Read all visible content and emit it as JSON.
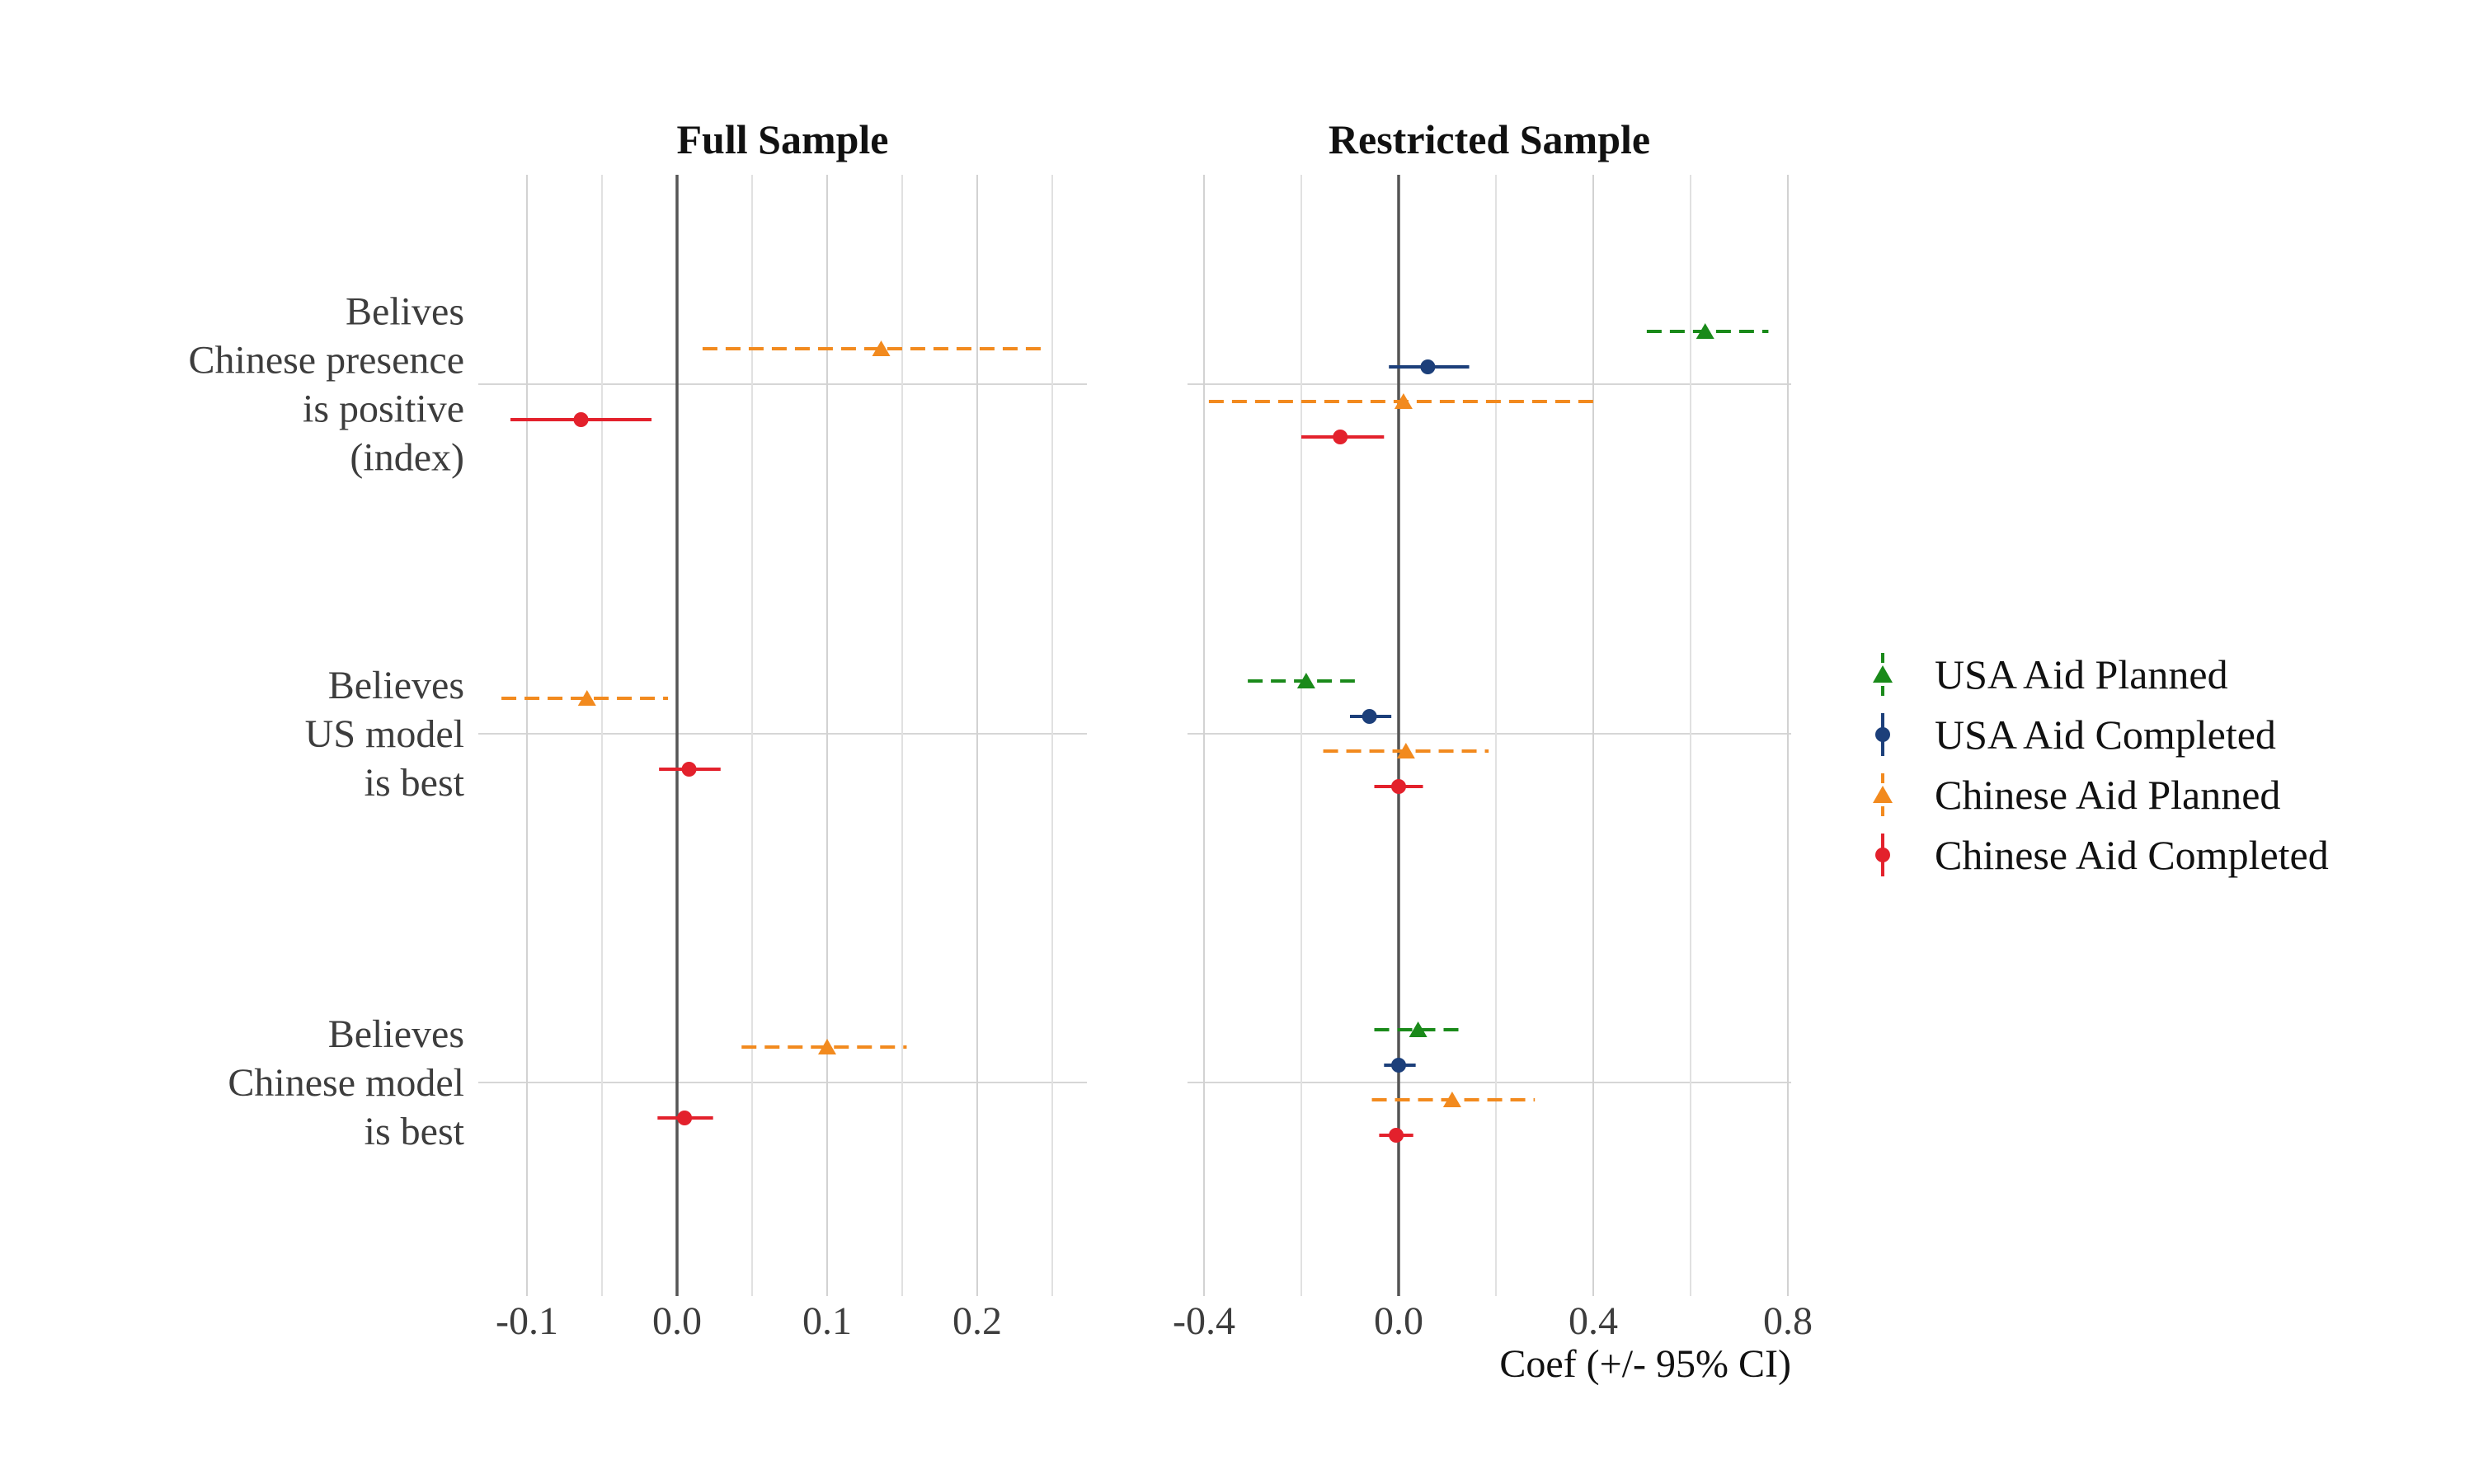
{
  "chart_data": {
    "type": "coefficient-plot",
    "x_axis_title": "Coef (+/- 95% CI)",
    "categories": [
      {
        "id": "positive",
        "label_lines": [
          "Belives",
          "Chinese presence",
          "is positive",
          "(index)"
        ]
      },
      {
        "id": "us_model",
        "label_lines": [
          "Believes",
          "US model",
          "is best"
        ]
      },
      {
        "id": "cn_model",
        "label_lines": [
          "Believes",
          "Chinese model",
          "is best"
        ]
      }
    ],
    "series_styles": [
      {
        "name": "USA Aid Planned",
        "color": "#1a8a1a",
        "marker": "triangle",
        "dash": true
      },
      {
        "name": "USA Aid Completed",
        "color": "#1c3f7a",
        "marker": "circle",
        "dash": false
      },
      {
        "name": "Chinese Aid Planned",
        "color": "#f28a1e",
        "marker": "triangle",
        "dash": true
      },
      {
        "name": "Chinese Aid Completed",
        "color": "#e3212c",
        "marker": "circle",
        "dash": false
      }
    ],
    "legend_placement": "right",
    "grid": true,
    "panels": [
      {
        "title": "Full Sample",
        "xlim": [
          -0.12,
          0.28
        ],
        "ticks": [
          -0.1,
          0.0,
          0.1,
          0.2
        ],
        "tick_labels": [
          "-0.1",
          "0.0",
          "0.1",
          "0.2"
        ],
        "minor_ticks": [
          -0.05,
          0.05,
          0.15,
          0.25
        ],
        "series": [
          {
            "name": "Chinese Aid Planned",
            "points": [
              {
                "category": "positive",
                "estimate": 0.136,
                "low": 0.017,
                "high": 0.245
              },
              {
                "category": "us_model",
                "estimate": -0.06,
                "low": -0.117,
                "high": -0.006
              },
              {
                "category": "cn_model",
                "estimate": 0.1,
                "low": 0.043,
                "high": 0.153
              }
            ]
          },
          {
            "name": "Chinese Aid Completed",
            "points": [
              {
                "category": "positive",
                "estimate": -0.064,
                "low": -0.111,
                "high": -0.017
              },
              {
                "category": "us_model",
                "estimate": 0.008,
                "low": -0.012,
                "high": 0.029
              },
              {
                "category": "cn_model",
                "estimate": 0.005,
                "low": -0.013,
                "high": 0.024
              }
            ]
          }
        ]
      },
      {
        "title": "Restricted Sample",
        "xlim": [
          -0.41,
          0.81
        ],
        "ticks": [
          -0.4,
          0.0,
          0.4,
          0.8
        ],
        "tick_labels": [
          "-0.4",
          "0.0",
          "0.4",
          "0.8"
        ],
        "minor_ticks": [
          -0.2,
          0.2,
          0.6
        ],
        "series": [
          {
            "name": "USA Aid Planned",
            "points": [
              {
                "category": "positive",
                "estimate": 0.63,
                "low": 0.51,
                "high": 0.76
              },
              {
                "category": "us_model",
                "estimate": -0.19,
                "low": -0.31,
                "high": -0.09
              },
              {
                "category": "cn_model",
                "estimate": 0.04,
                "low": -0.05,
                "high": 0.13
              }
            ]
          },
          {
            "name": "USA Aid Completed",
            "points": [
              {
                "category": "positive",
                "estimate": 0.06,
                "low": -0.02,
                "high": 0.145
              },
              {
                "category": "us_model",
                "estimate": -0.06,
                "low": -0.1,
                "high": -0.015
              },
              {
                "category": "cn_model",
                "estimate": 0.0,
                "low": -0.03,
                "high": 0.035
              }
            ]
          },
          {
            "name": "Chinese Aid Planned",
            "points": [
              {
                "category": "positive",
                "estimate": 0.01,
                "low": -0.39,
                "high": 0.41
              },
              {
                "category": "us_model",
                "estimate": 0.015,
                "low": -0.155,
                "high": 0.185
              },
              {
                "category": "cn_model",
                "estimate": 0.11,
                "low": -0.055,
                "high": 0.28
              }
            ]
          },
          {
            "name": "Chinese Aid Completed",
            "points": [
              {
                "category": "positive",
                "estimate": -0.12,
                "low": -0.2,
                "high": -0.03
              },
              {
                "category": "us_model",
                "estimate": 0.0,
                "low": -0.05,
                "high": 0.05
              },
              {
                "category": "cn_model",
                "estimate": -0.005,
                "low": -0.04,
                "high": 0.03
              }
            ]
          }
        ]
      }
    ]
  }
}
